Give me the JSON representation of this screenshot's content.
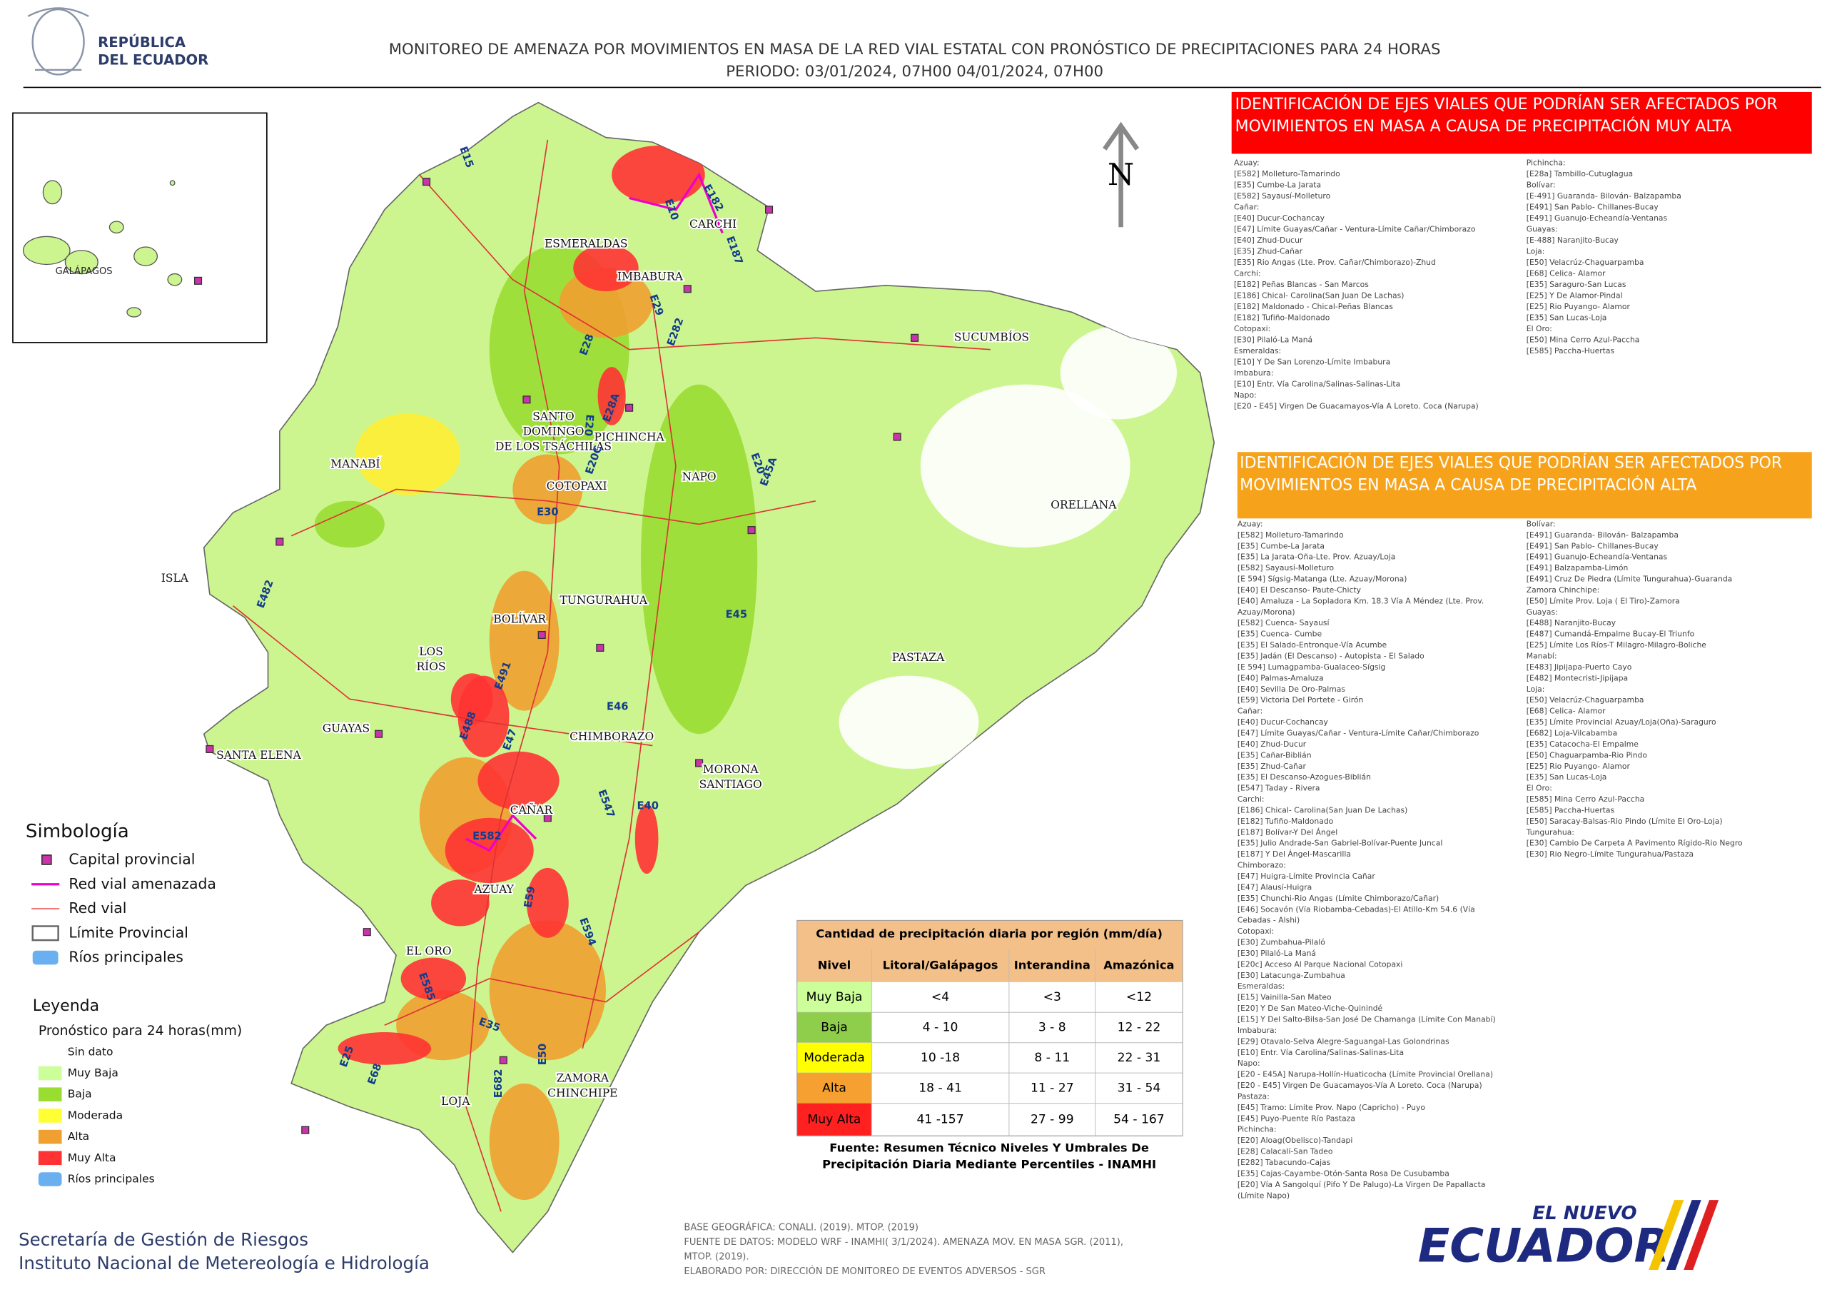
{
  "header": {
    "country": [
      "REPÚBLICA",
      "DEL ECUADOR"
    ],
    "title": "MONITOREO DE AMENAZA POR MOVIMIENTOS EN MASA DE LA RED VIAL  ESTATAL  CON PRONÓSTICO  DE  PRECIPITACIONES PARA 24 HORAS",
    "period": "PERIODO: 03/01/2024, 07H00 04/01/2024, 07H00"
  },
  "inset": {
    "label": "GALÁPAGOS"
  },
  "map": {
    "north": "N",
    "provinces": [
      [
        "ESMERALDAS"
      ],
      [
        "CARCHI"
      ],
      [
        "IMBABURA"
      ],
      [
        "SUCUMBÍOS"
      ],
      [
        "SANTO",
        "DOMINGO",
        "DE LOS TSÁCHILAS"
      ],
      [
        "PICHINCHA"
      ],
      [
        "MANABÍ"
      ],
      [
        "COTOPAXI"
      ],
      [
        "NAPO"
      ],
      [
        "ORELLANA"
      ],
      [
        "ISLA"
      ],
      [
        "TUNGURAHUA"
      ],
      [
        "BOLÍVAR"
      ],
      [
        "LOS",
        "RÍOS"
      ],
      [
        "PASTAZA"
      ],
      [
        "GUAYAS"
      ],
      [
        "SANTA ELENA"
      ],
      [
        "CHIMBORAZO"
      ],
      [
        "MORONA",
        "SANTIAGO"
      ],
      [
        "CAÑAR"
      ],
      [
        "AZUAY"
      ],
      [
        "EL ORO"
      ],
      [
        "LOJA"
      ],
      [
        "ZAMORA",
        "CHINCHIPE"
      ]
    ],
    "roads": [
      "E15",
      "E10",
      "E182",
      "E187",
      "E29",
      "E28",
      "E282",
      "E20",
      "E28A",
      "E20C",
      "E30",
      "E45A",
      "E20",
      "E45",
      "E482",
      "E488",
      "E491",
      "E47",
      "E46",
      "E547",
      "E40",
      "E582",
      "E59",
      "E594",
      "E585",
      "E35",
      "E25",
      "E68",
      "E682",
      "E50"
    ]
  },
  "alert_very_high": {
    "title": [
      "IDENTIFICACIÓN DE EJES VIALES QUE PODRÍAN SER AFECTADOS POR",
      "MOVIMIENTOS EN MASA A CAUSA DE PRECIPITACIÓN MUY ALTA"
    ],
    "columns": [
      [
        "Azuay:",
        "[E582] Molleturo-Tamarindo",
        "[E35] Cumbe-La Jarata",
        "[E582] Sayausí-Molleturo",
        "Cañar:",
        "[E40] Ducur-Cochancay",
        "[E47] Límite Guayas/Cañar - Ventura-Límite Cañar/Chimborazo",
        "[E40] Zhud-Ducur",
        "[E35] Zhud-Cañar",
        "[E35] Rio Angas (Lte. Prov. Cañar/Chimborazo)-Zhud",
        "Carchi:",
        "[E182] Peñas Blancas - San Marcos",
        "[E186] Chical- Carolina(San Juan De Lachas)",
        "[E182] Maldonado - Chical-Peñas Blancas",
        "[E182] Tufiño-Maldonado",
        "Cotopaxi:",
        "[E30] Pilaló-La Maná",
        "Esmeraldas:",
        "[E10] Y De San Lorenzo-Límite Imbabura",
        "Imbabura:",
        "[E10] Entr. Vía Carolina/Salinas-Salinas-Lita",
        "Napo:",
        "[E20 - E45] Virgen De Guacamayos-Vía A Loreto. Coca (Narupa)"
      ],
      [
        "Pichincha:",
        "[E28a] Tambillo-Cutuglagua",
        "Bolívar:",
        "[E-491] Guaranda- Bilován- Balzapamba",
        "[E491] San Pablo- Chillanes-Bucay",
        "[E491] Guanujo-Echeandía-Ventanas",
        "Guayas:",
        "[E-488] Naranjito-Bucay",
        "Loja:",
        "[E50] Velacrúz-Chaguarpamba",
        "[E68] Celica- Alamor",
        "[E35] Saraguro-San Lucas",
        "[E25] Y De Alamor-Pindal",
        "[E25] Rio Puyango- Alamor",
        "[E35] San Lucas-Loja",
        "El Oro:",
        "[E50] Mina Cerro Azul-Paccha",
        "[E585] Paccha-Huertas"
      ]
    ]
  },
  "alert_high": {
    "title": [
      "IDENTIFICACIÓN DE EJES VIALES QUE PODRÍAN SER AFECTADOS POR",
      "MOVIMIENTOS EN MASA A CAUSA DE PRECIPITACIÓN  ALTA"
    ],
    "columns": [
      [
        "Azuay:",
        "[E582] Molleturo-Tamarindo",
        "[E35] Cumbe-La Jarata",
        "[E35] La Jarata-Oña-Lte. Prov. Azuay/Loja",
        "[E582] Sayausí-Molleturo",
        "[E 594] Sígsig-Matanga (Lte. Azuay/Morona)",
        "[E40] El Descanso- Paute-Chicty",
        "[E40] Amaluza - La Sopladora Km. 18.3 Vía A Méndez (Lte. Prov.",
        "Azuay/Morona)",
        "[E582] Cuenca- Sayausí",
        "[E35] Cuenca- Cumbe",
        "[E35] El Salado-Entronque-Vía Acumbe",
        "[E35] Jadán (El Descanso) - Autopista - El Salado",
        "[E 594] Lumagpamba-Gualaceo-Sígsig",
        "[E40] Palmas-Amaluza",
        "[E40] Sevilla De Oro-Palmas",
        "[E59] Victoria Del Portete - Girón",
        "Cañar:",
        "[E40] Ducur-Cochancay",
        "[E47] Límite Guayas/Cañar - Ventura-Límite Cañar/Chimborazo",
        "[E40] Zhud-Ducur",
        "[E35] Cañar-Biblián",
        "[E35] Zhud-Cañar",
        "[E35] El Descanso-Azogues-Biblián",
        "[E547] Taday - Rivera",
        "Carchi:",
        "[E186] Chical- Carolina(San Juan De Lachas)",
        "[E182] Tufiño-Maldonado",
        "[E187] Bolívar-Y Del Ángel",
        "[E35] Julio Andrade-San Gabriel-Bolívar-Puente Juncal",
        "[E187] Y Del Ángel-Mascarilla",
        "Chimborazo:",
        "[E47] Huigra-Límite Provincia Cañar",
        "[E47] Alausí-Huigra",
        "[E35] Chunchi-Rio Angas (Límite Chimborazo/Cañar)",
        "[E46] Socavón (Vía Riobamba-Cebadas)-El Atillo-Km 54.6 (Vía",
        "Cebadas - Alshi)",
        "Cotopaxi:",
        "[E30] Zumbahua-Pilaló",
        "[E30] Pilaló-La Maná",
        "[E20c] Acceso Al Parque Nacional Cotopaxi",
        "[E30] Latacunga-Zumbahua",
        "Esmeraldas:",
        "[E15] Vainilla-San Mateo",
        "[E20] Y De San Mateo-Viche-Quinindé",
        "[E15] Y Del Salto-Bilsa-San José De Chamanga (Límite Con Manabí)",
        "Imbabura:",
        "[E29] Otavalo-Selva Alegre-Saguangal-Las Golondrinas",
        "[E10] Entr. Vía Carolina/Salinas-Salinas-Lita",
        "Napo:",
        "[E20 - E45A] Narupa-Hollín-Huaticocha (Límite Provincial Orellana)",
        "[E20 - E45] Virgen De Guacamayos-Vía A Loreto. Coca (Narupa)",
        "Pastaza:",
        "[E45] Tramo: Límite Prov. Napo (Capricho) - Puyo",
        "[E45] Puyo-Puente Río Pastaza",
        "Pichincha:",
        "[E20] Aloag(Obelisco)-Tandapi",
        "[E28] Calacalí-San Tadeo",
        "[E282] Tabacundo-Cajas",
        "[E35] Cajas-Cayambe-Otón-Santa Rosa De Cusubamba",
        "[E20] Vía A Sangolquí (Pifo Y De Palugo)-La Virgen De Papallacta",
        "(Límite Napo)"
      ],
      [
        "Bolívar:",
        "[E491] Guaranda- Bilován- Balzapamba",
        "[E491] San Pablo- Chillanes-Bucay",
        "[E491] Guanujo-Echeandía-Ventanas",
        "[E491] Balzapamba-Limón",
        "[E491] Cruz De Piedra (Límite Tungurahua)-Guaranda",
        "Zamora Chinchipe:",
        "[E50] Límite Prov. Loja ( El Tiro)-Zamora",
        "Guayas:",
        "[E488] Naranjito-Bucay",
        "[E487] Cumandá-Empalme Bucay-El Triunfo",
        "[E25] Límite Los Ríos-T Milagro-Milagro-Boliche",
        "Manabí:",
        "[E483] Jipijapa-Puerto Cayo",
        "[E482] Montecristi-Jipijapa",
        "Loja:",
        "[E50] Velacrúz-Chaguarpamba",
        "[E68] Celica- Alamor",
        "[E35] Límite Provincial Azuay/Loja(Oña)-Saraguro",
        "[E682] Loja-Vilcabamba",
        "[E35] Catacocha-El Empalme",
        "[E50] Chaguarpamba-Rio Pindo",
        "[E25] Rio Puyango- Alamor",
        "[E35] San Lucas-Loja",
        "El Oro:",
        "[E585] Mina Cerro Azul-Paccha",
        "[E585] Paccha-Huertas",
        "[E50] Saracay-Balsas-Rio Pindo (Límite El Oro-Loja)",
        "Tungurahua:",
        "[E30] Cambio De Carpeta A Pavimento Rígido-Rio Negro",
        "[E30] Rio Negro-Límite Tungurahua/Pastaza"
      ]
    ]
  },
  "table": {
    "title": "Cantidad de precipitación diaria por región (mm/día)",
    "headers": [
      "Nivel",
      "Litoral/Galápagos",
      "Interandina",
      "Amazónica"
    ],
    "rows": [
      [
        "Muy Baja",
        "<4",
        "<3",
        "<12"
      ],
      [
        "Baja",
        "4 - 10",
        "3 - 8",
        "12 - 22"
      ],
      [
        "Moderada",
        "10 -18",
        "8 - 11",
        "22 - 31"
      ],
      [
        "Alta",
        "18 - 41",
        "11 - 27",
        "31 - 54"
      ],
      [
        "Muy Alta",
        "41 -157",
        "27 - 99",
        "54 - 167"
      ]
    ],
    "source": [
      "Fuente: Resumen Técnico Niveles Y Umbrales De",
      "Precipitación Diaria Mediante Percentiles - INAMHI"
    ]
  },
  "symbology": {
    "title": "Simbología",
    "items": [
      "Capital provincial",
      "Red vial amenazada",
      "Red vial",
      "Límite Provincial",
      "Ríos principales"
    ]
  },
  "legend": {
    "title": "Leyenda",
    "subtitle": "Pronóstico para 24 horas(mm)",
    "items": [
      "Sin dato",
      "Muy Baja",
      "Baja",
      "Moderada",
      "Alta",
      "Muy Alta",
      "Ríos principales"
    ]
  },
  "footer": {
    "institutions": [
      "Secretaría de Gestión de Riesgos",
      "Instituto Nacional de Metereología e Hidrología"
    ],
    "notes": [
      "BASE GEOGRÁFICA: CONALI. (2019). MTOP. (2019)",
      "FUENTE DE DATOS: MODELO WRF - INAMHI( 3/1/2024).  AMENAZA MOV. EN MASA SGR. (2011),",
      "MTOP. (2019).",
      "ELABORADO POR: DIRECCIÓN DE MONITOREO DE EVENTOS ADVERSOS - SGR"
    ],
    "brand": [
      "EL NUEVO",
      "ECUADOR"
    ]
  }
}
